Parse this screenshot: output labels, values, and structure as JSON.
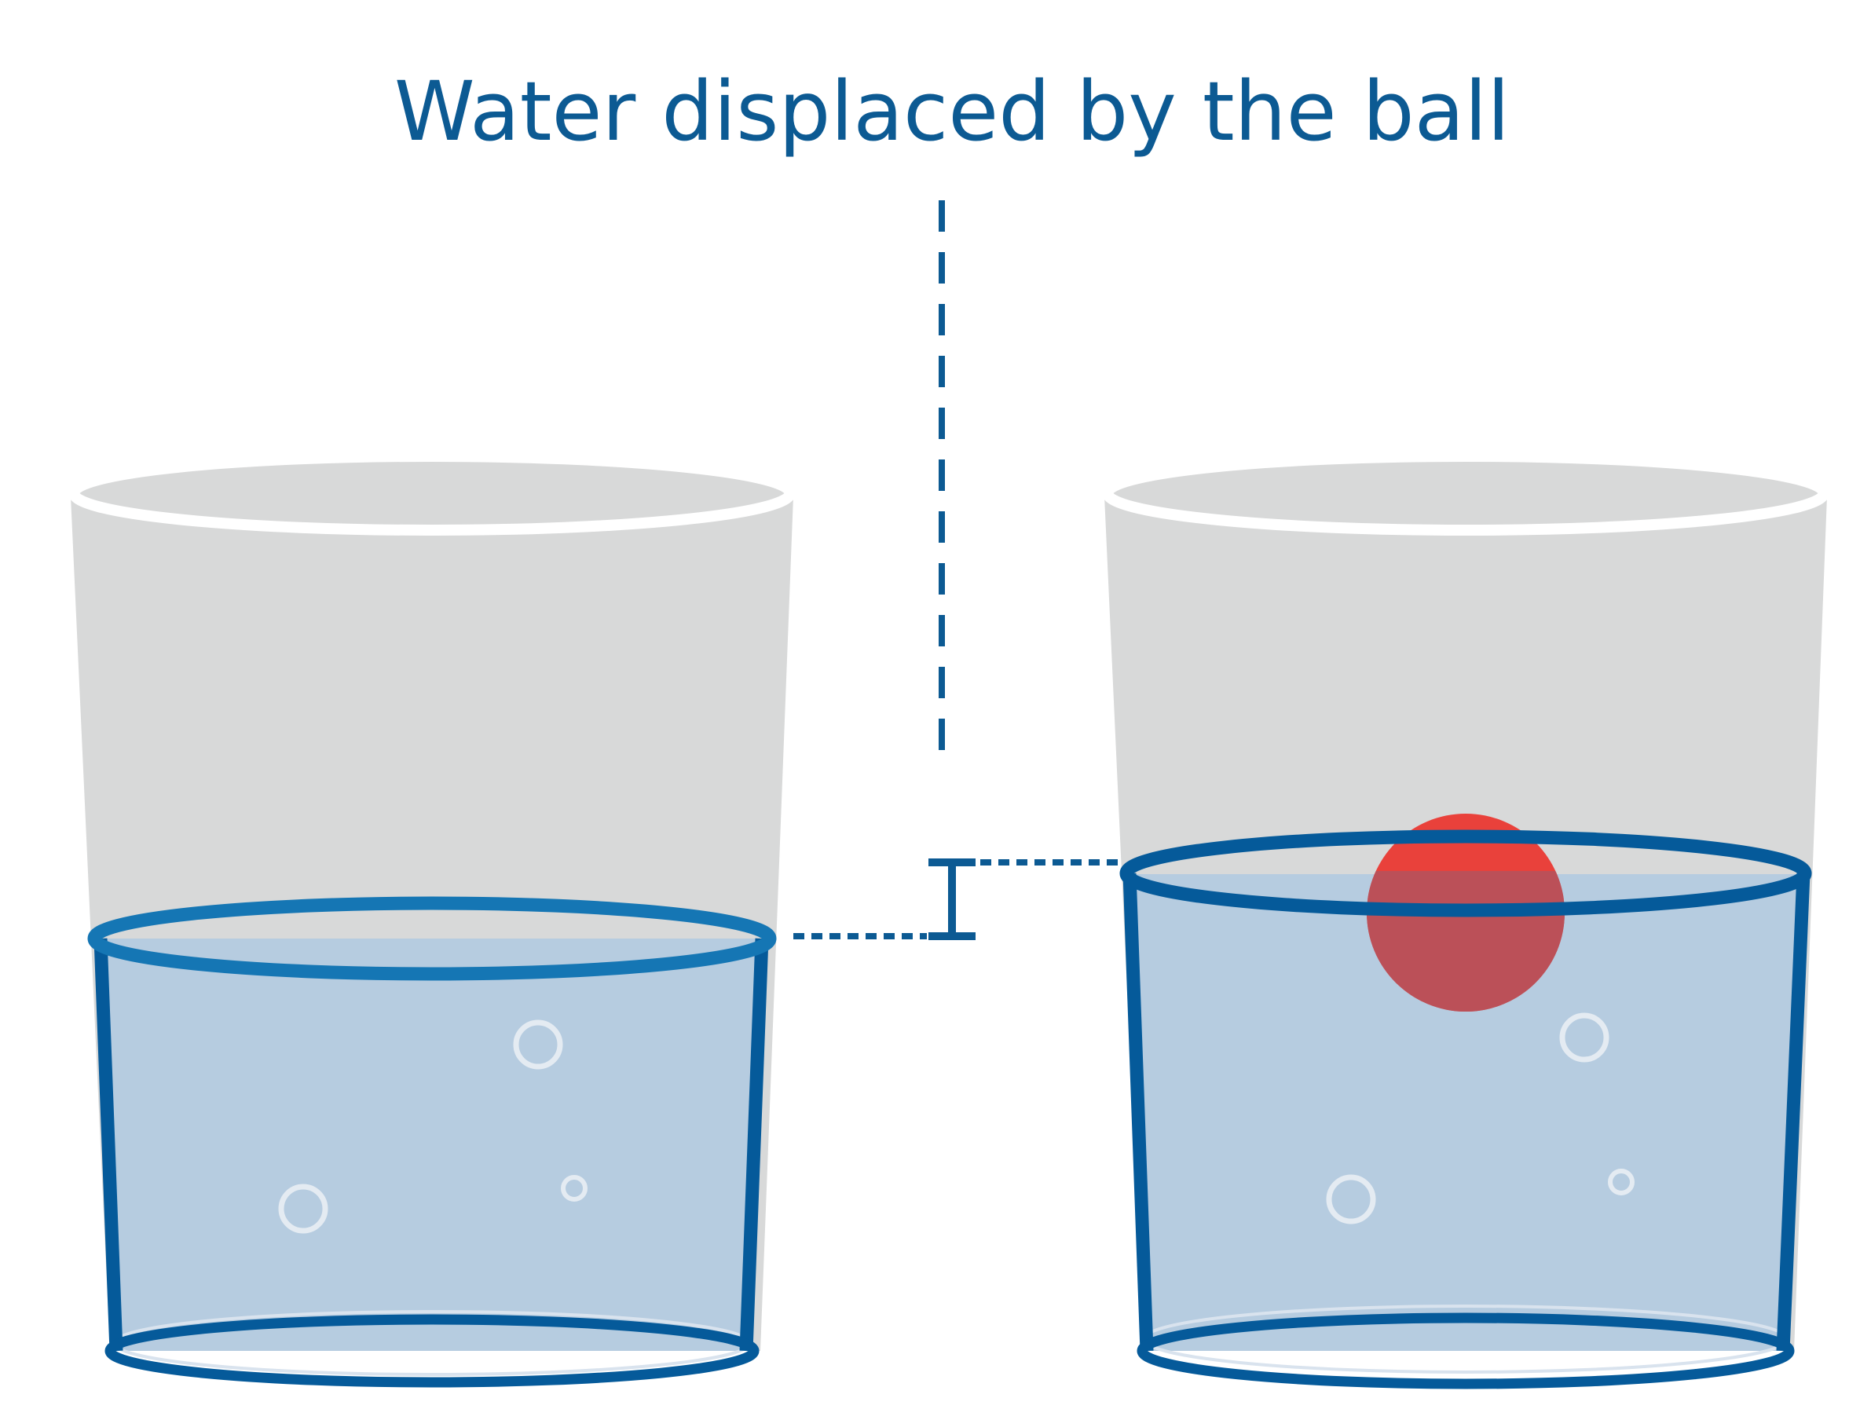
{
  "title": "Water displaced by the ball",
  "colors": {
    "title": "#0c5a93",
    "glass": "#d8d9d9",
    "water": "#b6cce0",
    "water_outline_left_surface": "#1576b4",
    "water_outline": "#055a9a",
    "guide_lines": "#0c5a93",
    "ball_above_water": "#e9413b",
    "ball_in_water": "#bb5058",
    "bubbles": "#e4ebf2"
  },
  "figures": [
    {
      "name": "glass-without-ball",
      "contains_ball": false
    },
    {
      "name": "glass-with-ball",
      "contains_ball": true
    }
  ]
}
